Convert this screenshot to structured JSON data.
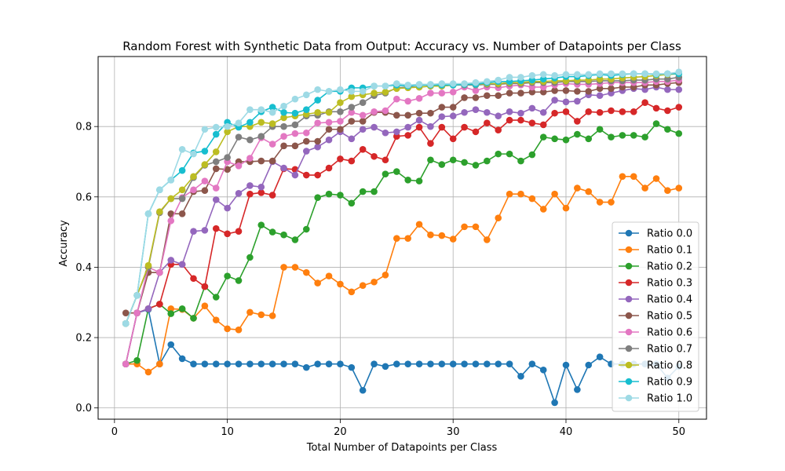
{
  "chart_data": {
    "type": "line",
    "title": "Random Forest with Synthetic Data from Output: Accuracy vs. Number of Datapoints per Class",
    "xlabel": "Total Number of Datapoints per Class",
    "ylabel": "Accuracy",
    "xlim": [
      -1.45,
      52.45
    ],
    "ylim": [
      -0.032,
      0.999
    ],
    "xticks": [
      0,
      10,
      20,
      30,
      40,
      50
    ],
    "yticks": [
      0.0,
      0.2,
      0.4,
      0.6,
      0.8
    ],
    "ytick_labels": [
      "0.0",
      "0.2",
      "0.4",
      "0.6",
      "0.8"
    ],
    "grid": true,
    "legend_position": "lower-right",
    "x": [
      1,
      2,
      3,
      4,
      5,
      6,
      7,
      8,
      9,
      10,
      11,
      12,
      13,
      14,
      15,
      16,
      17,
      18,
      19,
      20,
      21,
      22,
      23,
      24,
      25,
      26,
      27,
      28,
      29,
      30,
      31,
      32,
      33,
      34,
      35,
      36,
      37,
      38,
      39,
      40,
      41,
      42,
      43,
      44,
      45,
      46,
      47,
      48,
      49,
      50
    ],
    "series": [
      {
        "name": "Ratio 0.0",
        "color": "#1f77b4",
        "values": [
          0.125,
          0.27,
          0.28,
          0.125,
          0.18,
          0.14,
          0.125,
          0.125,
          0.125,
          0.125,
          0.125,
          0.125,
          0.125,
          0.125,
          0.125,
          0.125,
          0.115,
          0.125,
          0.125,
          0.125,
          0.115,
          0.05,
          0.125,
          0.118,
          0.125,
          0.125,
          0.125,
          0.125,
          0.125,
          0.125,
          0.125,
          0.125,
          0.125,
          0.125,
          0.125,
          0.09,
          0.125,
          0.108,
          0.015,
          0.122,
          0.052,
          0.122,
          0.145,
          0.125,
          0.125,
          0.125,
          0.125,
          0.125,
          0.085,
          0.118
        ]
      },
      {
        "name": "Ratio 0.1",
        "color": "#ff7f0e",
        "values": [
          0.125,
          0.125,
          0.102,
          0.125,
          0.282,
          0.28,
          0.255,
          0.29,
          0.25,
          0.225,
          0.222,
          0.272,
          0.265,
          0.262,
          0.4,
          0.4,
          0.385,
          0.355,
          0.375,
          0.352,
          0.33,
          0.348,
          0.358,
          0.378,
          0.482,
          0.482,
          0.522,
          0.492,
          0.49,
          0.48,
          0.515,
          0.515,
          0.478,
          0.54,
          0.608,
          0.608,
          0.595,
          0.565,
          0.608,
          0.568,
          0.625,
          0.615,
          0.585,
          0.585,
          0.658,
          0.658,
          0.625,
          0.652,
          0.618,
          0.625
        ]
      },
      {
        "name": "Ratio 0.2",
        "color": "#2ca02c",
        "values": [
          0.125,
          0.135,
          0.282,
          0.295,
          0.268,
          0.282,
          0.255,
          0.345,
          0.315,
          0.375,
          0.362,
          0.428,
          0.52,
          0.5,
          0.492,
          0.478,
          0.508,
          0.598,
          0.608,
          0.605,
          0.582,
          0.615,
          0.615,
          0.665,
          0.672,
          0.648,
          0.645,
          0.705,
          0.692,
          0.705,
          0.698,
          0.69,
          0.702,
          0.722,
          0.722,
          0.702,
          0.72,
          0.77,
          0.765,
          0.762,
          0.778,
          0.765,
          0.792,
          0.77,
          0.775,
          0.775,
          0.77,
          0.808,
          0.792,
          0.78
        ]
      },
      {
        "name": "Ratio 0.3",
        "color": "#d62728",
        "values": [
          0.125,
          0.27,
          0.282,
          0.295,
          0.408,
          0.408,
          0.368,
          0.345,
          0.51,
          0.495,
          0.502,
          0.608,
          0.612,
          0.605,
          0.68,
          0.678,
          0.662,
          0.662,
          0.682,
          0.708,
          0.702,
          0.735,
          0.715,
          0.705,
          0.772,
          0.775,
          0.798,
          0.752,
          0.798,
          0.765,
          0.798,
          0.785,
          0.81,
          0.79,
          0.818,
          0.818,
          0.81,
          0.805,
          0.838,
          0.842,
          0.815,
          0.842,
          0.84,
          0.845,
          0.842,
          0.842,
          0.868,
          0.852,
          0.845,
          0.855
        ]
      },
      {
        "name": "Ratio 0.4",
        "color": "#9467bd",
        "values": [
          0.125,
          0.27,
          0.282,
          0.385,
          0.42,
          0.408,
          0.502,
          0.505,
          0.592,
          0.568,
          0.61,
          0.632,
          0.628,
          0.7,
          0.682,
          0.662,
          0.73,
          0.742,
          0.762,
          0.785,
          0.765,
          0.792,
          0.798,
          0.782,
          0.785,
          0.798,
          0.818,
          0.8,
          0.828,
          0.83,
          0.84,
          0.848,
          0.84,
          0.83,
          0.842,
          0.838,
          0.852,
          0.84,
          0.875,
          0.87,
          0.872,
          0.89,
          0.888,
          0.895,
          0.902,
          0.908,
          0.905,
          0.912,
          0.905,
          0.905
        ]
      },
      {
        "name": "Ratio 0.5",
        "color": "#8c564b",
        "values": [
          0.27,
          0.27,
          0.385,
          0.385,
          0.552,
          0.552,
          0.615,
          0.618,
          0.68,
          0.678,
          0.7,
          0.7,
          0.702,
          0.702,
          0.745,
          0.745,
          0.758,
          0.758,
          0.792,
          0.792,
          0.815,
          0.815,
          0.84,
          0.84,
          0.832,
          0.832,
          0.838,
          0.838,
          0.855,
          0.855,
          0.882,
          0.882,
          0.888,
          0.888,
          0.895,
          0.895,
          0.898,
          0.898,
          0.902,
          0.902,
          0.9,
          0.9,
          0.908,
          0.908,
          0.912,
          0.912,
          0.918,
          0.918,
          0.922,
          0.925
        ]
      },
      {
        "name": "Ratio 0.6",
        "color": "#e377c2",
        "values": [
          0.125,
          0.27,
          0.4,
          0.385,
          0.532,
          0.598,
          0.62,
          0.645,
          0.625,
          0.7,
          0.688,
          0.71,
          0.768,
          0.75,
          0.772,
          0.78,
          0.782,
          0.81,
          0.812,
          0.815,
          0.84,
          0.832,
          0.842,
          0.845,
          0.878,
          0.872,
          0.88,
          0.895,
          0.895,
          0.898,
          0.912,
          0.902,
          0.912,
          0.91,
          0.915,
          0.918,
          0.912,
          0.912,
          0.918,
          0.922,
          0.92,
          0.92,
          0.922,
          0.925,
          0.925,
          0.925,
          0.925,
          0.928,
          0.928,
          0.932
        ]
      },
      {
        "name": "Ratio 0.7",
        "color": "#7f7f7f",
        "values": [
          0.24,
          0.32,
          0.4,
          0.555,
          0.595,
          0.595,
          0.655,
          0.69,
          0.7,
          0.712,
          0.77,
          0.762,
          0.772,
          0.8,
          0.8,
          0.805,
          0.83,
          0.832,
          0.842,
          0.842,
          0.855,
          0.868,
          0.888,
          0.895,
          0.91,
          0.912,
          0.912,
          0.915,
          0.915,
          0.918,
          0.918,
          0.918,
          0.92,
          0.92,
          0.922,
          0.922,
          0.925,
          0.925,
          0.925,
          0.928,
          0.928,
          0.928,
          0.93,
          0.93,
          0.93,
          0.932,
          0.932,
          0.935,
          0.935,
          0.94
        ]
      },
      {
        "name": "Ratio 0.8",
        "color": "#bcbd22",
        "values": [
          0.24,
          0.32,
          0.405,
          0.558,
          0.595,
          0.62,
          0.658,
          0.692,
          0.728,
          0.785,
          0.8,
          0.8,
          0.812,
          0.808,
          0.825,
          0.83,
          0.835,
          0.84,
          0.84,
          0.868,
          0.885,
          0.89,
          0.895,
          0.898,
          0.908,
          0.91,
          0.912,
          0.915,
          0.915,
          0.918,
          0.92,
          0.92,
          0.922,
          0.922,
          0.925,
          0.925,
          0.928,
          0.928,
          0.93,
          0.93,
          0.932,
          0.932,
          0.935,
          0.935,
          0.938,
          0.94,
          0.942,
          0.945,
          0.948,
          0.95
        ]
      },
      {
        "name": "Ratio 0.9",
        "color": "#17becf",
        "values": [
          0.24,
          0.32,
          0.552,
          0.62,
          0.648,
          0.675,
          0.725,
          0.73,
          0.778,
          0.812,
          0.798,
          0.812,
          0.842,
          0.855,
          0.84,
          0.838,
          0.848,
          0.875,
          0.9,
          0.9,
          0.91,
          0.91,
          0.915,
          0.915,
          0.918,
          0.915,
          0.918,
          0.918,
          0.918,
          0.918,
          0.92,
          0.92,
          0.925,
          0.928,
          0.928,
          0.93,
          0.932,
          0.935,
          0.938,
          0.942,
          0.942,
          0.945,
          0.948,
          0.945,
          0.948,
          0.95,
          0.95,
          0.948,
          0.95,
          0.95
        ]
      },
      {
        "name": "Ratio 1.0",
        "color": "#9edae5",
        "values": [
          0.24,
          0.32,
          0.552,
          0.62,
          0.648,
          0.735,
          0.722,
          0.792,
          0.798,
          0.8,
          0.81,
          0.848,
          0.848,
          0.84,
          0.858,
          0.878,
          0.89,
          0.905,
          0.9,
          0.905,
          0.9,
          0.9,
          0.915,
          0.915,
          0.922,
          0.918,
          0.92,
          0.92,
          0.922,
          0.922,
          0.922,
          0.925,
          0.928,
          0.932,
          0.94,
          0.94,
          0.945,
          0.948,
          0.945,
          0.948,
          0.948,
          0.948,
          0.95,
          0.95,
          0.95,
          0.95,
          0.95,
          0.95,
          0.95,
          0.955
        ]
      }
    ]
  }
}
